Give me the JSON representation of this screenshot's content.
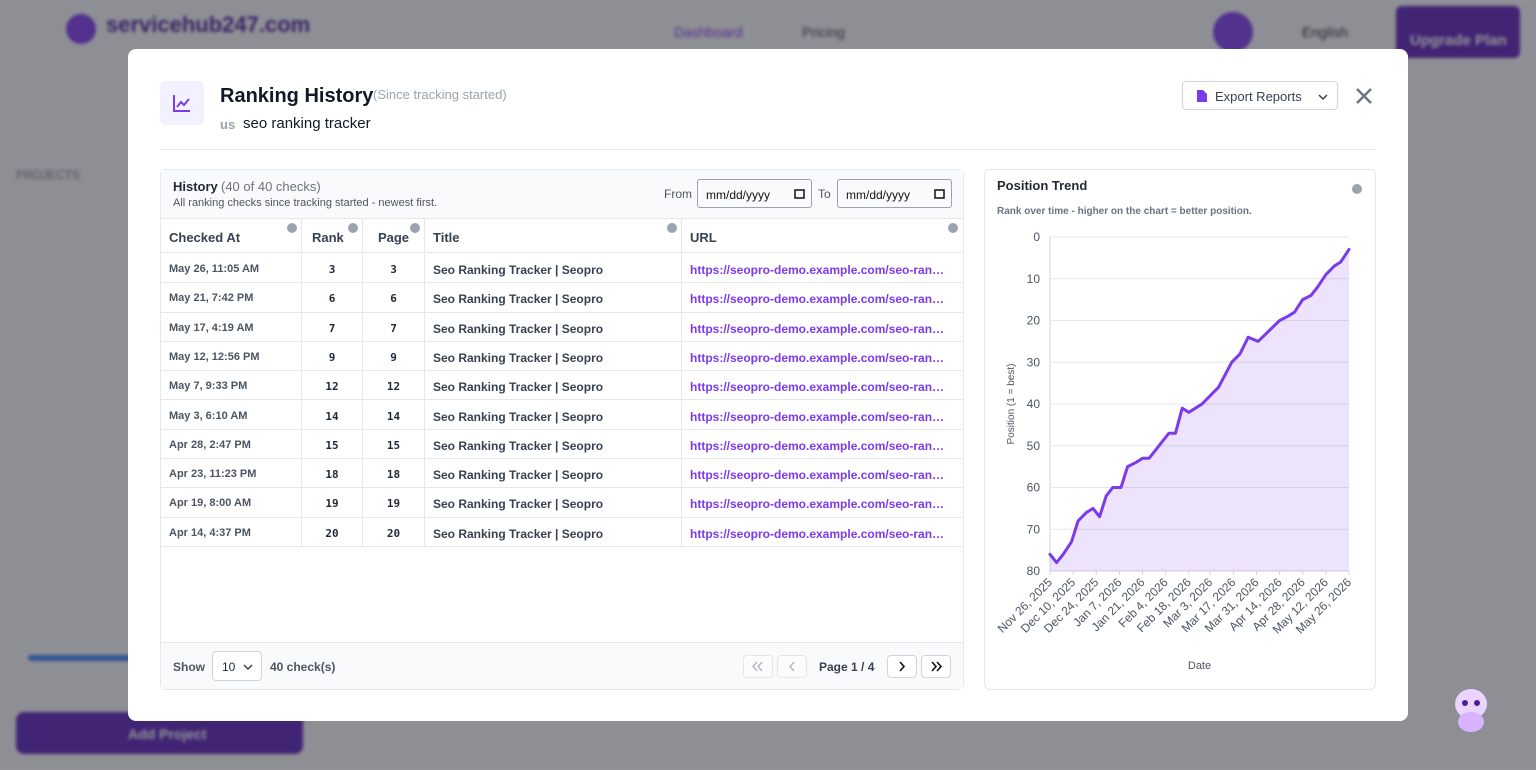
{
  "background": {
    "brand": "servicehub247.com",
    "nav": [
      "Dashboard",
      "Pricing"
    ],
    "language": "English",
    "upgrade": "Upgrade Plan",
    "sidebar_heading": "PROJECTS",
    "add_project": "Add Project"
  },
  "modal": {
    "title": "Ranking History",
    "subtitle": "(Since tracking started)",
    "country": "us",
    "keyword": "seo ranking tracker",
    "export": "Export Reports"
  },
  "history": {
    "title": "History",
    "count": "(40 of 40 checks)",
    "description": "All ranking checks since tracking started - newest first.",
    "from": "From",
    "to": "To",
    "date_placeholder": "mm/dd/yyyy"
  },
  "table": {
    "columns": [
      "Checked At",
      "Rank",
      "Page",
      "Title",
      "URL"
    ],
    "rows": [
      [
        "May 26, 11:05 AM",
        3,
        3,
        "Seo Ranking Tracker | Seopro",
        "https://seopro-demo.example.com/seo-ran…"
      ],
      [
        "May 21, 7:42 PM",
        6,
        6,
        "Seo Ranking Tracker | Seopro",
        "https://seopro-demo.example.com/seo-ran…"
      ],
      [
        "May 17, 4:19 AM",
        7,
        7,
        "Seo Ranking Tracker | Seopro",
        "https://seopro-demo.example.com/seo-ran…"
      ],
      [
        "May 12, 12:56 PM",
        9,
        9,
        "Seo Ranking Tracker | Seopro",
        "https://seopro-demo.example.com/seo-ran…"
      ],
      [
        "May 7, 9:33 PM",
        12,
        12,
        "Seo Ranking Tracker | Seopro",
        "https://seopro-demo.example.com/seo-ran…"
      ],
      [
        "May 3, 6:10 AM",
        14,
        14,
        "Seo Ranking Tracker | Seopro",
        "https://seopro-demo.example.com/seo-ran…"
      ],
      [
        "Apr 28, 2:47 PM",
        15,
        15,
        "Seo Ranking Tracker | Seopro",
        "https://seopro-demo.example.com/seo-ran…"
      ],
      [
        "Apr 23, 11:23 PM",
        18,
        18,
        "Seo Ranking Tracker | Seopro",
        "https://seopro-demo.example.com/seo-ran…"
      ],
      [
        "Apr 19, 8:00 AM",
        19,
        19,
        "Seo Ranking Tracker | Seopro",
        "https://seopro-demo.example.com/seo-ran…"
      ],
      [
        "Apr 14, 4:37 PM",
        20,
        20,
        "Seo Ranking Tracker | Seopro",
        "https://seopro-demo.example.com/seo-ran…"
      ]
    ]
  },
  "footer": {
    "show": "Show",
    "page_size": 10,
    "total": "40 check(s)",
    "page": "Page 1 / 4"
  },
  "chart_data": {
    "type": "line",
    "title": "Position Trend",
    "subtitle": "Rank over time - higher on the chart = better position.",
    "xlabel": "Date",
    "ylabel": "Position (1 = best)",
    "color": "#7c3aed",
    "area": true,
    "grid": true,
    "y_inverted": true,
    "x": [
      "2025-11-26",
      "2025-11-30",
      "2025-12-04",
      "2025-12-09",
      "2025-12-13",
      "2025-12-18",
      "2025-12-22",
      "2025-12-26",
      "2025-12-30",
      "2026-01-03",
      "2026-01-08",
      "2026-01-12",
      "2026-01-17",
      "2026-01-21",
      "2026-01-25",
      "2026-01-29",
      "2026-02-02",
      "2026-02-06",
      "2026-02-10",
      "2026-02-14",
      "2026-02-18",
      "2026-02-22",
      "2026-02-26",
      "2026-03-03",
      "2026-03-08",
      "2026-03-12",
      "2026-03-16",
      "2026-03-21",
      "2026-03-26",
      "2026-04-01",
      "2026-04-14",
      "2026-04-19",
      "2026-04-23",
      "2026-04-28",
      "2026-05-03",
      "2026-05-07",
      "2026-05-12",
      "2026-05-17",
      "2026-05-21",
      "2026-05-26"
    ],
    "values": [
      76,
      78,
      76,
      73,
      68,
      66,
      65,
      67,
      62,
      60,
      60,
      55,
      54,
      53,
      53,
      51,
      49,
      47,
      47,
      41,
      42,
      41,
      40,
      38,
      36,
      33,
      30,
      28,
      24,
      25,
      20,
      19,
      18,
      15,
      14,
      12,
      9,
      7,
      6,
      3
    ],
    "xlim": [
      "2025-11-26",
      "2026-05-26"
    ],
    "xticks": [
      {
        "value": "2025-11-26",
        "label": "Nov 26, 2025"
      },
      {
        "value": "2025-12-10",
        "label": "Dec 10, 2025"
      },
      {
        "value": "2025-12-24",
        "label": "Dec 24, 2025"
      },
      {
        "value": "2026-01-07",
        "label": "Jan 7, 2026"
      },
      {
        "value": "2026-01-21",
        "label": "Jan 21, 2026"
      },
      {
        "value": "2026-02-04",
        "label": "Feb 4, 2026"
      },
      {
        "value": "2026-02-18",
        "label": "Feb 18, 2026"
      },
      {
        "value": "2026-03-03",
        "label": "Mar 3, 2026"
      },
      {
        "value": "2026-03-17",
        "label": "Mar 17, 2026"
      },
      {
        "value": "2026-03-31",
        "label": "Mar 31, 2026"
      },
      {
        "value": "2026-04-14",
        "label": "Apr 14, 2026"
      },
      {
        "value": "2026-04-28",
        "label": "Apr 28, 2026"
      },
      {
        "value": "2026-05-12",
        "label": "May 12, 2026"
      },
      {
        "value": "2026-05-26",
        "label": "May 26, 2026"
      }
    ],
    "ylim": [
      0,
      80
    ],
    "yticks": [
      0,
      10,
      20,
      30,
      40,
      50,
      60,
      70,
      80
    ]
  }
}
